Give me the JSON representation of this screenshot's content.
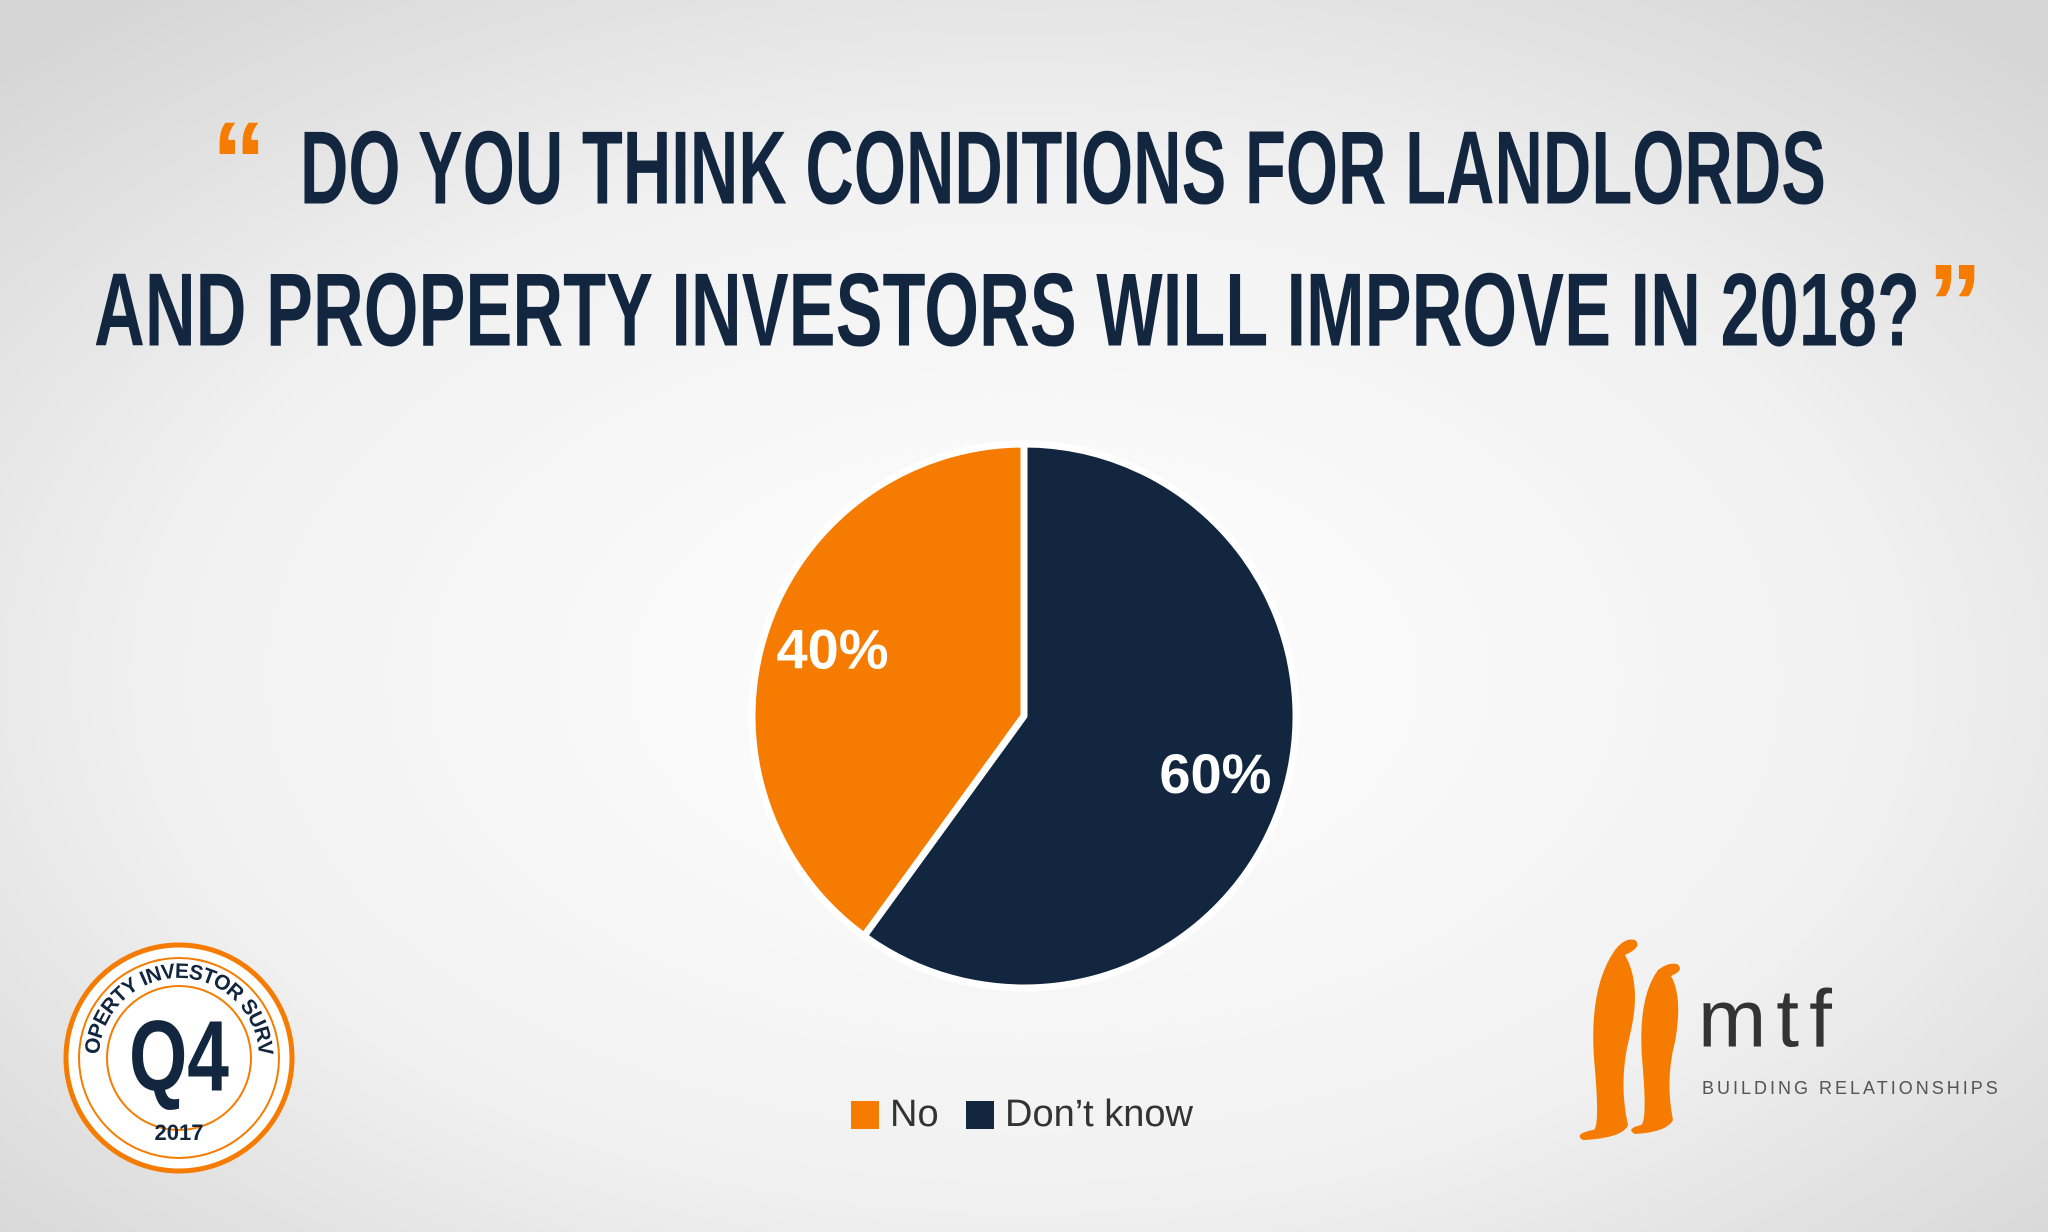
{
  "chart_data": {
    "type": "pie",
    "title_lines": [
      "DO YOU THINK CONDITIONS FOR LANDLORDS",
      "AND PROPERTY INVESTORS WILL IMPROVE IN 2018?"
    ],
    "open_quote": "“",
    "close_quote": "”",
    "categories": [
      "No",
      "Don’t know"
    ],
    "values": [
      40,
      60
    ],
    "value_labels": [
      "40%",
      "60%"
    ],
    "colors": [
      "#f57c00",
      "#12263f"
    ]
  },
  "badge": {
    "arc_text": "PROPERTY INVESTOR SURVEY",
    "quarter": "Q4",
    "year": "2017"
  },
  "logo": {
    "name": "mtf",
    "tagline": "BUILDING RELATIONSHIPS"
  }
}
